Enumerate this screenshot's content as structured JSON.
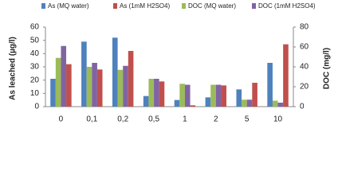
{
  "chart_data": {
    "type": "bar",
    "categories": [
      "0",
      "0,1",
      "0,2",
      "0,5",
      "1",
      "2",
      "5",
      "10"
    ],
    "y_label": "As leached (µg/l)",
    "y2_label": "DOC  (mg/l)",
    "ylim": [
      0,
      60
    ],
    "yticks": [
      0,
      10,
      20,
      30,
      40,
      50,
      60
    ],
    "y2lim": [
      0,
      80
    ],
    "y2ticks": [
      0,
      20,
      40,
      60,
      80
    ],
    "grid": false,
    "legend": "top",
    "series": [
      {
        "name": "As (MQ water)",
        "color": "#4f81bd",
        "values": [
          21,
          49,
          52,
          8,
          5,
          7,
          13,
          33
        ]
      },
      {
        "name": "As  (1mM H2SO4)",
        "color": "#c0504d",
        "values": [
          32,
          28,
          42,
          19,
          1,
          16,
          18,
          47
        ]
      },
      {
        "name": "DOC (MQ water)",
        "color": "#9bbb59",
        "axis": "y2",
        "values": [
          49,
          40,
          37,
          28,
          23,
          22,
          7,
          6
        ]
      },
      {
        "name": "DOC (1mM H2SO4)",
        "color": "#8064a2",
        "axis": "y2",
        "values": [
          61,
          44,
          41,
          28,
          22,
          22,
          7,
          4
        ]
      }
    ]
  }
}
